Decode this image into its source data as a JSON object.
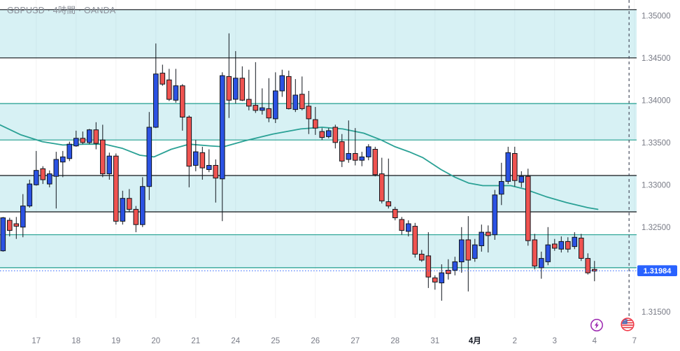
{
  "header": {
    "title": "GBPUSD · 4時間 · OANDA"
  },
  "colors": {
    "up": "#2b52e3",
    "down": "#ef5350",
    "wick": "#10151c",
    "zone_fill": "rgba(134,211,222,0.33)",
    "zone_border_dark": "#101418",
    "zone_border_teal": "#1e9e8e",
    "ma": "#2aa195",
    "price_line": "#2962ff",
    "axis_text": "#787b86",
    "bold_label": "#131722",
    "separator": "#4a5060",
    "grid": "rgba(0,0,0,0.05)",
    "badge_text": "#ffffff",
    "lightning": "#9c27b0",
    "flag_ring": "#f23645"
  },
  "chart_data": {
    "type": "candlestick",
    "symbol": "GBPUSD",
    "timeframe": "4時間",
    "exchange": "OANDA",
    "format": "ohlc",
    "separator_index": 94.2,
    "y_axis": {
      "price_line": 1.31984,
      "badge": "1.31984",
      "labels": [
        {
          "text": "1.35000",
          "value": 1.35
        },
        {
          "text": "1.34500",
          "value": 1.345
        },
        {
          "text": "1.34000",
          "value": 1.34
        },
        {
          "text": "1.33500",
          "value": 1.335
        },
        {
          "text": "1.33000",
          "value": 1.33
        },
        {
          "text": "1.32500",
          "value": 1.325
        },
        {
          "text": "1.31500",
          "value": 1.315
        }
      ]
    },
    "x_axis": {
      "labels": [
        {
          "text": "17",
          "i": 5
        },
        {
          "text": "18",
          "i": 11
        },
        {
          "text": "19",
          "i": 17
        },
        {
          "text": "20",
          "i": 23
        },
        {
          "text": "21",
          "i": 29
        },
        {
          "text": "24",
          "i": 35
        },
        {
          "text": "25",
          "i": 41
        },
        {
          "text": "26",
          "i": 47
        },
        {
          "text": "27",
          "i": 53
        },
        {
          "text": "28",
          "i": 59
        },
        {
          "text": "31",
          "i": 65
        },
        {
          "text": "4月",
          "i": 71,
          "bold": true
        },
        {
          "text": "2",
          "i": 77
        },
        {
          "text": "3",
          "i": 83
        },
        {
          "text": "4",
          "i": 89
        },
        {
          "text": "7",
          "i": 95
        }
      ]
    },
    "zones": [
      {
        "top": 1.3507,
        "bottom": 1.345,
        "border": "dark"
      },
      {
        "top": 1.3396,
        "bottom": 1.3353,
        "border": "teal"
      },
      {
        "top": 1.3311,
        "bottom": 1.3268,
        "border": "dark"
      },
      {
        "top": 1.3241,
        "bottom": 1.3202,
        "border": "teal"
      }
    ],
    "ma": {
      "points": [
        [
          -0.5,
          1.3371
        ],
        [
          2.7,
          1.3359
        ],
        [
          5.9,
          1.3351
        ],
        [
          9,
          1.3347
        ],
        [
          12.2,
          1.3348
        ],
        [
          15.3,
          1.3348
        ],
        [
          18,
          1.3343
        ],
        [
          20.6,
          1.3335
        ],
        [
          22.7,
          1.3333
        ],
        [
          25.3,
          1.3342
        ],
        [
          28,
          1.3348
        ],
        [
          31.1,
          1.3346
        ],
        [
          33.2,
          1.3345
        ],
        [
          36.4,
          1.3352
        ],
        [
          40.6,
          1.336
        ],
        [
          44.8,
          1.3366
        ],
        [
          48,
          1.3368
        ],
        [
          51.1,
          1.3366
        ],
        [
          54.3,
          1.3361
        ],
        [
          56.9,
          1.3353
        ],
        [
          59,
          1.3345
        ],
        [
          61.1,
          1.3339
        ],
        [
          63.2,
          1.3332
        ],
        [
          65.9,
          1.3318
        ],
        [
          68,
          1.3309
        ],
        [
          70.1,
          1.3302
        ],
        [
          72.2,
          1.3299
        ],
        [
          74.3,
          1.3299
        ],
        [
          76.4,
          1.3299
        ],
        [
          78.5,
          1.3295
        ],
        [
          81.7,
          1.3286
        ],
        [
          84.8,
          1.3279
        ],
        [
          88,
          1.3273
        ],
        [
          89.5,
          1.3271
        ]
      ]
    },
    "candles": [
      [
        1.3222,
        1.3262,
        1.3221,
        1.3261
      ],
      [
        1.3258,
        1.3261,
        1.3239,
        1.3246
      ],
      [
        1.3254,
        1.3262,
        1.3236,
        1.3251
      ],
      [
        1.325,
        1.3289,
        1.3238,
        1.3275
      ],
      [
        1.3275,
        1.3306,
        1.3273,
        1.3301
      ],
      [
        1.33,
        1.334,
        1.3299,
        1.3317
      ],
      [
        1.3319,
        1.3322,
        1.3301,
        1.3306
      ],
      [
        1.3301,
        1.3317,
        1.3297,
        1.3313
      ],
      [
        1.331,
        1.3339,
        1.3272,
        1.333
      ],
      [
        1.3327,
        1.334,
        1.3309,
        1.3333
      ],
      [
        1.3331,
        1.3351,
        1.3328,
        1.3348
      ],
      [
        1.3346,
        1.3364,
        1.3345,
        1.3355
      ],
      [
        1.3355,
        1.3363,
        1.3348,
        1.335
      ],
      [
        1.335,
        1.3366,
        1.3348,
        1.3365
      ],
      [
        1.3365,
        1.3374,
        1.3342,
        1.3349
      ],
      [
        1.3353,
        1.3371,
        1.3309,
        1.3313
      ],
      [
        1.3313,
        1.3338,
        1.3306,
        1.3334
      ],
      [
        1.3334,
        1.3337,
        1.3253,
        1.3257
      ],
      [
        1.3257,
        1.3293,
        1.3253,
        1.3284
      ],
      [
        1.3284,
        1.3295,
        1.3268,
        1.3271
      ],
      [
        1.3271,
        1.3275,
        1.3244,
        1.3253
      ],
      [
        1.3253,
        1.3309,
        1.325,
        1.3298
      ],
      [
        1.3298,
        1.3386,
        1.3282,
        1.3368
      ],
      [
        1.3368,
        1.3467,
        1.3367,
        1.3431
      ],
      [
        1.3432,
        1.3442,
        1.3417,
        1.3419
      ],
      [
        1.3424,
        1.3437,
        1.3399,
        1.3401
      ],
      [
        1.34,
        1.3437,
        1.3397,
        1.3417
      ],
      [
        1.3417,
        1.3419,
        1.3364,
        1.338
      ],
      [
        1.338,
        1.3382,
        1.3297,
        1.3322
      ],
      [
        1.3323,
        1.3353,
        1.3316,
        1.3339
      ],
      [
        1.3338,
        1.3345,
        1.3306,
        1.332
      ],
      [
        1.3318,
        1.3342,
        1.3315,
        1.3323
      ],
      [
        1.3323,
        1.333,
        1.3279,
        1.3308
      ],
      [
        1.3307,
        1.3433,
        1.3257,
        1.3429
      ],
      [
        1.3428,
        1.3479,
        1.3379,
        1.34
      ],
      [
        1.3401,
        1.3458,
        1.3396,
        1.3426
      ],
      [
        1.3426,
        1.344,
        1.3399,
        1.34
      ],
      [
        1.3401,
        1.3436,
        1.3388,
        1.3393
      ],
      [
        1.3394,
        1.3445,
        1.3385,
        1.3388
      ],
      [
        1.3388,
        1.3414,
        1.3383,
        1.3391
      ],
      [
        1.339,
        1.3426,
        1.3374,
        1.3379
      ],
      [
        1.3378,
        1.3433,
        1.3373,
        1.3411
      ],
      [
        1.3411,
        1.3436,
        1.3404,
        1.3429
      ],
      [
        1.3428,
        1.3435,
        1.3389,
        1.339
      ],
      [
        1.3389,
        1.3425,
        1.3386,
        1.3406
      ],
      [
        1.3407,
        1.3428,
        1.3388,
        1.339
      ],
      [
        1.3393,
        1.3411,
        1.336,
        1.3378
      ],
      [
        1.3377,
        1.3392,
        1.3359,
        1.3367
      ],
      [
        1.3363,
        1.3367,
        1.3353,
        1.3356
      ],
      [
        1.3357,
        1.3367,
        1.3355,
        1.3364
      ],
      [
        1.3368,
        1.3371,
        1.3343,
        1.335
      ],
      [
        1.3351,
        1.336,
        1.3321,
        1.3328
      ],
      [
        1.333,
        1.3376,
        1.3326,
        1.3337
      ],
      [
        1.3337,
        1.3367,
        1.3323,
        1.3329
      ],
      [
        1.3329,
        1.3339,
        1.3322,
        1.3333
      ],
      [
        1.3333,
        1.3348,
        1.3329,
        1.3345
      ],
      [
        1.3342,
        1.3345,
        1.331,
        1.3312
      ],
      [
        1.3313,
        1.3332,
        1.3278,
        1.3281
      ],
      [
        1.328,
        1.3331,
        1.3272,
        1.3275
      ],
      [
        1.3271,
        1.3274,
        1.3258,
        1.3261
      ],
      [
        1.3259,
        1.3262,
        1.3241,
        1.3246
      ],
      [
        1.3245,
        1.3258,
        1.3239,
        1.3254
      ],
      [
        1.3251,
        1.3255,
        1.3214,
        1.3218
      ],
      [
        1.3218,
        1.3223,
        1.3209,
        1.3211
      ],
      [
        1.3216,
        1.3244,
        1.3178,
        1.3191
      ],
      [
        1.319,
        1.3193,
        1.3176,
        1.3185
      ],
      [
        1.3184,
        1.3206,
        1.3163,
        1.3196
      ],
      [
        1.3199,
        1.3212,
        1.3188,
        1.3195
      ],
      [
        1.3199,
        1.3215,
        1.3193,
        1.3209
      ],
      [
        1.3209,
        1.325,
        1.3196,
        1.3235
      ],
      [
        1.3235,
        1.3263,
        1.3174,
        1.3211
      ],
      [
        1.3213,
        1.3236,
        1.3209,
        1.3229
      ],
      [
        1.3228,
        1.3253,
        1.3221,
        1.3244
      ],
      [
        1.3244,
        1.3252,
        1.322,
        1.324
      ],
      [
        1.3241,
        1.3294,
        1.3235,
        1.3288
      ],
      [
        1.3289,
        1.3326,
        1.3276,
        1.3304
      ],
      [
        1.3304,
        1.3345,
        1.3301,
        1.3338
      ],
      [
        1.3337,
        1.3345,
        1.3298,
        1.3305
      ],
      [
        1.3303,
        1.3316,
        1.3297,
        1.331
      ],
      [
        1.331,
        1.3319,
        1.3228,
        1.3234
      ],
      [
        1.3235,
        1.3242,
        1.32,
        1.3204
      ],
      [
        1.3202,
        1.3221,
        1.3189,
        1.3213
      ],
      [
        1.3209,
        1.325,
        1.3205,
        1.3229
      ],
      [
        1.323,
        1.3236,
        1.3222,
        1.3225
      ],
      [
        1.3224,
        1.3239,
        1.322,
        1.3233
      ],
      [
        1.3233,
        1.3238,
        1.322,
        1.3224
      ],
      [
        1.3227,
        1.3244,
        1.3224,
        1.3238
      ],
      [
        1.3237,
        1.3242,
        1.321,
        1.3213
      ],
      [
        1.3213,
        1.3219,
        1.3194,
        1.3196
      ],
      [
        1.32,
        1.321,
        1.3186,
        1.3198
      ]
    ]
  },
  "markers": [
    {
      "name": "lightning-event",
      "label": "economic-event-lightning"
    },
    {
      "name": "us-flag-event",
      "label": "us-economic-event"
    }
  ]
}
